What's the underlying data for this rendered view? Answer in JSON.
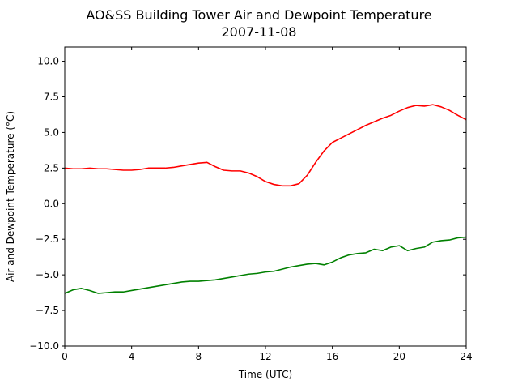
{
  "chart_data": {
    "type": "line",
    "title": "AO&SS Building Tower Air and Dewpoint Temperature",
    "subtitle": "2007-11-08",
    "xlabel": "Time (UTC)",
    "ylabel": "Air and Dewpoint Temperature (°C)",
    "xlim": [
      0,
      24
    ],
    "ylim": [
      -10,
      11
    ],
    "xticks": [
      0,
      4,
      8,
      12,
      16,
      20,
      24
    ],
    "xtick_labels": [
      "0",
      "4",
      "8",
      "12",
      "16",
      "20",
      "24"
    ],
    "yticks": [
      -10,
      -7.5,
      -5,
      -2.5,
      0,
      2.5,
      5,
      7.5,
      10
    ],
    "ytick_labels": [
      "−10.0",
      "−7.5",
      "−5.0",
      "−2.5",
      "0.0",
      "2.5",
      "5.0",
      "7.5",
      "10.0"
    ],
    "grid": false,
    "series": [
      {
        "color": "#ff0000",
        "x": [
          0,
          0.5,
          1,
          1.5,
          2,
          2.5,
          3,
          3.5,
          4,
          4.5,
          5,
          5.5,
          6,
          6.5,
          7,
          7.5,
          8,
          8.5,
          9,
          9.5,
          10,
          10.5,
          11,
          11.5,
          12,
          12.5,
          13,
          13.5,
          14,
          14.5,
          15,
          15.5,
          16,
          16.5,
          17,
          17.5,
          18,
          18.5,
          19,
          19.5,
          20,
          20.5,
          21,
          21.5,
          22,
          22.5,
          23,
          23.5,
          24
        ],
        "values": [
          2.5,
          2.45,
          2.45,
          2.5,
          2.45,
          2.45,
          2.4,
          2.35,
          2.35,
          2.4,
          2.5,
          2.5,
          2.5,
          2.55,
          2.65,
          2.75,
          2.85,
          2.9,
          2.6,
          2.35,
          2.3,
          2.3,
          2.15,
          1.9,
          1.55,
          1.35,
          1.25,
          1.25,
          1.4,
          2.0,
          2.9,
          3.7,
          4.3,
          4.6,
          4.9,
          5.2,
          5.5,
          5.75,
          6.0,
          6.2,
          6.5,
          6.75,
          6.9,
          6.85,
          6.95,
          6.8,
          6.55,
          6.2,
          5.9
        ]
      },
      {
        "color": "#008000",
        "x": [
          0,
          0.5,
          1,
          1.5,
          2,
          2.5,
          3,
          3.5,
          4,
          4.5,
          5,
          5.5,
          6,
          6.5,
          7,
          7.5,
          8,
          8.5,
          9,
          9.5,
          10,
          10.5,
          11,
          11.5,
          12,
          12.5,
          13,
          13.5,
          14,
          14.5,
          15,
          15.5,
          16,
          16.5,
          17,
          17.5,
          18,
          18.5,
          19,
          19.5,
          20,
          20.5,
          21,
          21.5,
          22,
          22.5,
          23,
          23.5,
          24
        ],
        "values": [
          -6.3,
          -6.05,
          -5.95,
          -6.1,
          -6.3,
          -6.25,
          -6.2,
          -6.2,
          -6.1,
          -6.0,
          -5.9,
          -5.8,
          -5.7,
          -5.6,
          -5.5,
          -5.45,
          -5.45,
          -5.4,
          -5.35,
          -5.25,
          -5.15,
          -5.05,
          -4.95,
          -4.9,
          -4.8,
          -4.75,
          -4.6,
          -4.45,
          -4.35,
          -4.25,
          -4.2,
          -4.3,
          -4.1,
          -3.8,
          -3.6,
          -3.5,
          -3.45,
          -3.2,
          -3.3,
          -3.05,
          -2.95,
          -3.3,
          -3.15,
          -3.05,
          -2.7,
          -2.6,
          -2.55,
          -2.4,
          -2.35
        ]
      }
    ]
  }
}
